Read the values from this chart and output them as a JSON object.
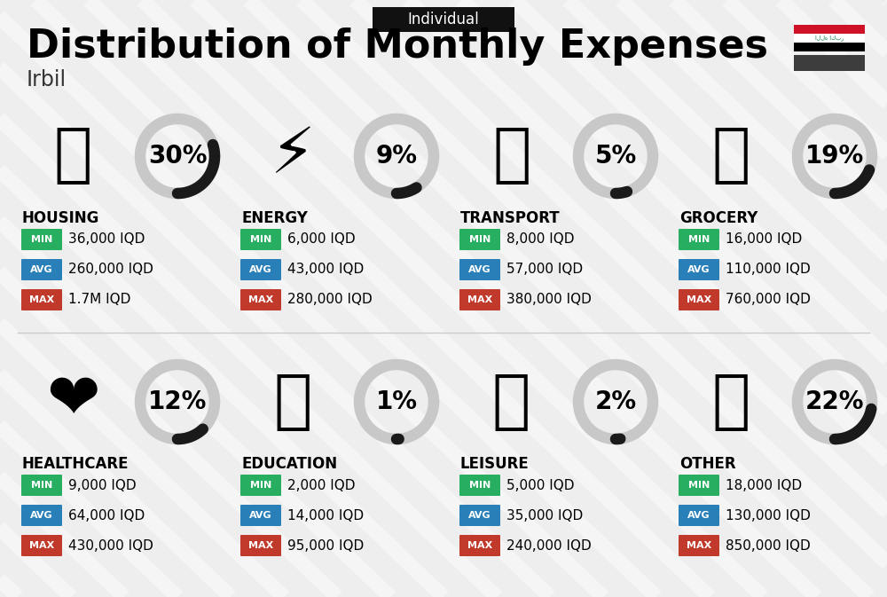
{
  "title": "Distribution of Monthly Expenses",
  "subtitle": "Individual",
  "city": "Irbil",
  "bg_color": "#eeeeee",
  "categories": [
    {
      "name": "HOUSING",
      "pct": 30,
      "emoji": "🏙️",
      "min": "36,000 IQD",
      "avg": "260,000 IQD",
      "max": "1.7M IQD",
      "row": 0,
      "col": 0
    },
    {
      "name": "ENERGY",
      "pct": 9,
      "emoji": "⚡",
      "min": "6,000 IQD",
      "avg": "43,000 IQD",
      "max": "280,000 IQD",
      "row": 0,
      "col": 1
    },
    {
      "name": "TRANSPORT",
      "pct": 5,
      "emoji": "🚌",
      "min": "8,000 IQD",
      "avg": "57,000 IQD",
      "max": "380,000 IQD",
      "row": 0,
      "col": 2
    },
    {
      "name": "GROCERY",
      "pct": 19,
      "emoji": "🛒",
      "min": "16,000 IQD",
      "avg": "110,000 IQD",
      "max": "760,000 IQD",
      "row": 0,
      "col": 3
    },
    {
      "name": "HEALTHCARE",
      "pct": 12,
      "emoji": "❤️",
      "min": "9,000 IQD",
      "avg": "64,000 IQD",
      "max": "430,000 IQD",
      "row": 1,
      "col": 0
    },
    {
      "name": "EDUCATION",
      "pct": 1,
      "emoji": "🎓",
      "min": "2,000 IQD",
      "avg": "14,000 IQD",
      "max": "95,000 IQD",
      "row": 1,
      "col": 1
    },
    {
      "name": "LEISURE",
      "pct": 2,
      "emoji": "🛍️",
      "min": "5,000 IQD",
      "avg": "35,000 IQD",
      "max": "240,000 IQD",
      "row": 1,
      "col": 2
    },
    {
      "name": "OTHER",
      "pct": 22,
      "emoji": "👜",
      "min": "18,000 IQD",
      "avg": "130,000 IQD",
      "max": "850,000 IQD",
      "row": 1,
      "col": 3
    }
  ],
  "color_min": "#27ae60",
  "color_avg": "#2980b9",
  "color_max": "#c0392b",
  "color_arc_filled": "#1a1a1a",
  "color_arc_empty": "#c8c8c8",
  "title_fontsize": 32,
  "subtitle_fontsize": 12,
  "city_fontsize": 17,
  "pct_fontsize": 20,
  "cat_fontsize": 12,
  "val_fontsize": 11,
  "badge_fontsize": 8
}
